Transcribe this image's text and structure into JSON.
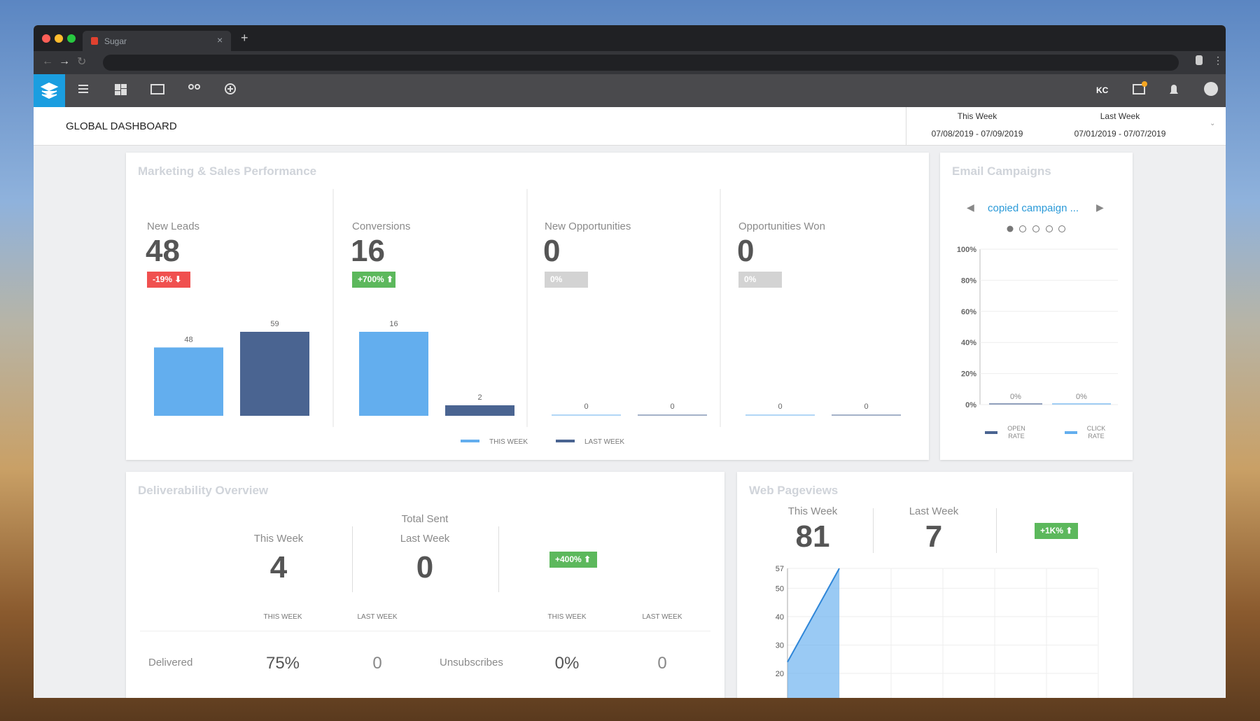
{
  "browser": {
    "tab_title": "Sugar",
    "initials": "KC"
  },
  "header": {
    "title": "GLOBAL DASHBOARD",
    "ranges": [
      {
        "label": "This Week",
        "dates": "07/08/2019 - 07/09/2019"
      },
      {
        "label": "Last Week",
        "dates": "07/01/2019 - 07/07/2019"
      }
    ]
  },
  "marketing": {
    "title": "Marketing & Sales Performance",
    "series": [
      {
        "name": "THIS WEEK",
        "color": "#63aeee"
      },
      {
        "name": "LAST WEEK",
        "color": "#4a6491"
      }
    ],
    "metrics": [
      {
        "label": "New Leads",
        "value": 48,
        "change": "-19%",
        "color": "#f0504f",
        "trend": "down",
        "bars": [
          48,
          59
        ]
      },
      {
        "label": "Conversions",
        "value": 16,
        "change": "+700%",
        "color": "#5cb85c",
        "trend": "up",
        "bars": [
          16,
          2
        ]
      },
      {
        "label": "New Opportunities",
        "value": 0,
        "change": "0%",
        "color": "#d3d3d3",
        "trend": "none",
        "bars": [
          0,
          0
        ]
      },
      {
        "label": "Opportunities Won",
        "value": 0,
        "change": "0%",
        "color": "#d3d3d3",
        "trend": "none",
        "bars": [
          0,
          0
        ]
      }
    ]
  },
  "email": {
    "title": "Email Campaigns",
    "campaign": "copied campaign ...",
    "chart_data": {
      "type": "bar",
      "ylim": [
        0,
        100
      ],
      "yticks": [
        {
          "value": 0,
          "label": "0%"
        },
        {
          "value": 20,
          "label": "20%"
        },
        {
          "value": 40,
          "label": "40%"
        },
        {
          "value": 60,
          "label": "60%"
        },
        {
          "value": 80,
          "label": "80%"
        },
        {
          "value": 100,
          "label": "100%"
        }
      ],
      "grid": true,
      "series": [
        {
          "name": "OPEN RATE",
          "color": "#4a6491",
          "values": [
            0
          ],
          "value_labels": [
            "0%"
          ]
        },
        {
          "name": "CLICK RATE",
          "color": "#63aeee",
          "values": [
            0
          ],
          "value_labels": [
            "0%"
          ]
        }
      ]
    }
  },
  "deliverability": {
    "title": "Deliverability Overview",
    "total_label": "Total Sent",
    "this_week": {
      "label": "This Week",
      "value": 4
    },
    "last_week": {
      "label": "Last Week",
      "value": 0
    },
    "change": "+400%",
    "table": {
      "headers": [
        "THIS WEEK",
        "LAST WEEK",
        "THIS WEEK",
        "LAST WEEK"
      ],
      "rows": [
        [
          "Delivered",
          "75%",
          "0"
        ],
        [
          "Unsubscribes",
          "0%",
          "0"
        ]
      ]
    }
  },
  "pageviews": {
    "title": "Web Pageviews",
    "this_week": {
      "label": "This Week",
      "value": 81
    },
    "last_week": {
      "label": "Last Week",
      "value": 7
    },
    "change": "+1K%",
    "chart_data": {
      "type": "area",
      "ylim": [
        0,
        57
      ],
      "yticks": [
        20,
        30,
        40,
        50,
        57
      ],
      "grid": true,
      "values": [
        24,
        57
      ],
      "color": "#64adee"
    }
  }
}
